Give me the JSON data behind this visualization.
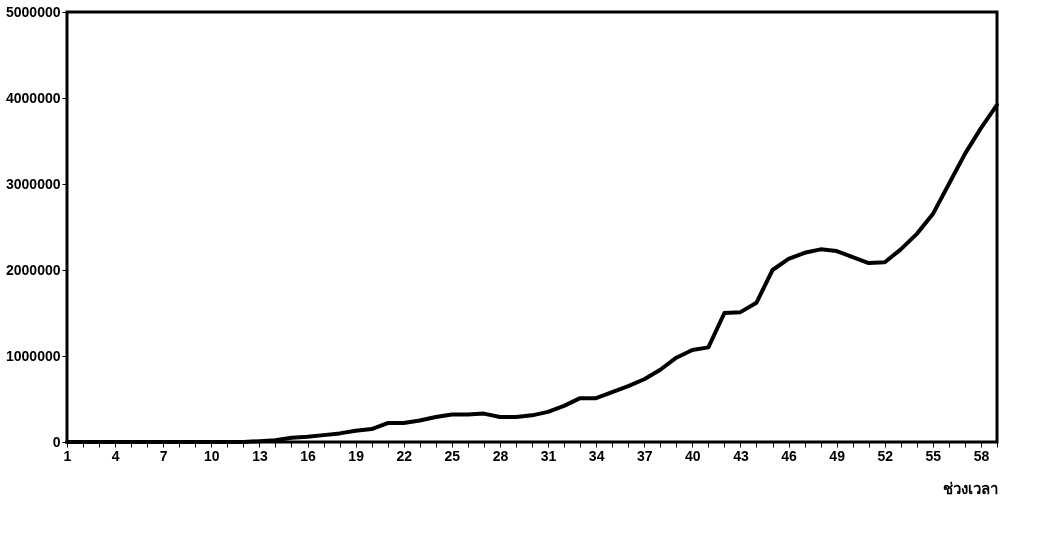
{
  "chart_data": {
    "type": "line",
    "xlabel": "ช่วงเวลา",
    "categories": [
      "1",
      null,
      null,
      "4",
      null,
      null,
      "7",
      null,
      null,
      "10",
      null,
      null,
      "13",
      null,
      null,
      "16",
      null,
      null,
      "19",
      null,
      null,
      "22",
      null,
      null,
      "25",
      null,
      null,
      "28",
      null,
      null,
      "31",
      null,
      null,
      "34",
      null,
      null,
      "37",
      null,
      null,
      "40",
      null,
      null,
      "43",
      null,
      null,
      "46",
      null,
      null,
      "49",
      null,
      null,
      "52",
      null,
      null,
      "55",
      null,
      null,
      "58",
      null
    ],
    "series": [
      {
        "color": "#000000",
        "values": [
          0,
          0,
          0,
          0,
          0,
          0,
          0,
          0,
          0,
          0,
          0,
          0,
          10000,
          20000,
          50000,
          60000,
          80000,
          100000,
          130000,
          150000,
          220000,
          220000,
          250000,
          290000,
          320000,
          320000,
          330000,
          290000,
          290000,
          310000,
          350000,
          420000,
          510000,
          510000,
          580000,
          650000,
          730000,
          840000,
          980000,
          1070000,
          1100000,
          1500000,
          1510000,
          1620000,
          2000000,
          2130000,
          2200000,
          2240000,
          2220000,
          2150000,
          2080000,
          2090000,
          2240000,
          2420000,
          2650000,
          3000000,
          3350000,
          3650000,
          3920000
        ]
      }
    ],
    "ylim": [
      0,
      5000000
    ],
    "yticks": [
      0,
      1000000,
      2000000,
      3000000,
      4000000,
      5000000
    ],
    "grid": false,
    "marker": "none",
    "line_style": "solid"
  }
}
